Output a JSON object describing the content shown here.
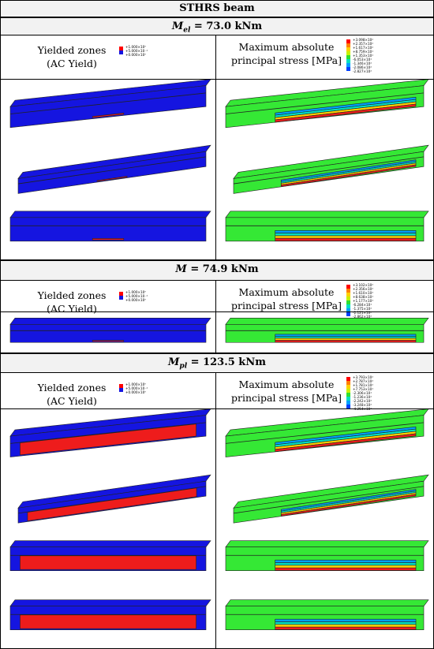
{
  "title": "STHRS beam",
  "sections": [
    {
      "moment_symbol": "M",
      "moment_subscript": "el",
      "moment_value": "= 73.0 kNm",
      "left_header": [
        "Yielded zones",
        "(AC Yield)"
      ],
      "right_header": [
        "Maximum absolute",
        "principal stress [MPa]"
      ],
      "yield_legend": [
        "+1.000×10⁰",
        "+5.000×10⁻¹",
        "+0.000×10⁰"
      ],
      "stress_legend": [
        "+3.098×10²",
        "+2.357×10²",
        "+1.617×10²",
        "+8.759×10¹",
        "+1.353×10¹",
        "-6.053×10¹",
        "-1.346×10²",
        "-2.086×10²",
        "-2.827×10²"
      ]
    },
    {
      "moment_symbol": "M",
      "moment_value": "= 74.9 kNm",
      "left_header": [
        "Yielded zones",
        "(AC Yield)"
      ],
      "right_header": [
        "Maximum absolute",
        "principal stress [MPa]"
      ],
      "yield_legend": [
        "+1.000×10⁰",
        "+5.000×10⁻¹",
        "+0.000×10⁰"
      ],
      "stress_legend": [
        "+3.102×10²",
        "+2.356×10²",
        "+1.610×10²",
        "+8.638×10¹",
        "+1.177×10¹",
        "-6.284×10¹",
        "-1.375×10²",
        "-2.121×10²",
        "-2.862×10²"
      ]
    },
    {
      "moment_symbol": "M",
      "moment_subscript": "pl",
      "moment_value": "= 123.5 kNm",
      "left_header": [
        "Yielded zones",
        "(AC Yield)"
      ],
      "right_header": [
        "Maximum absolute",
        "principal stress [MPa]"
      ],
      "yield_legend": [
        "+1.000×10⁰",
        "+5.000×10⁻¹",
        "+0.000×10⁰"
      ],
      "stress_legend": [
        "+3.793×10²",
        "+2.787×10²",
        "+1.781×10²",
        "+7.753×10¹",
        "-2.306×10¹",
        "-1.236×10²",
        "-2.242×10²",
        "-3.248×10²",
        "-4.254×10²"
      ]
    }
  ]
}
